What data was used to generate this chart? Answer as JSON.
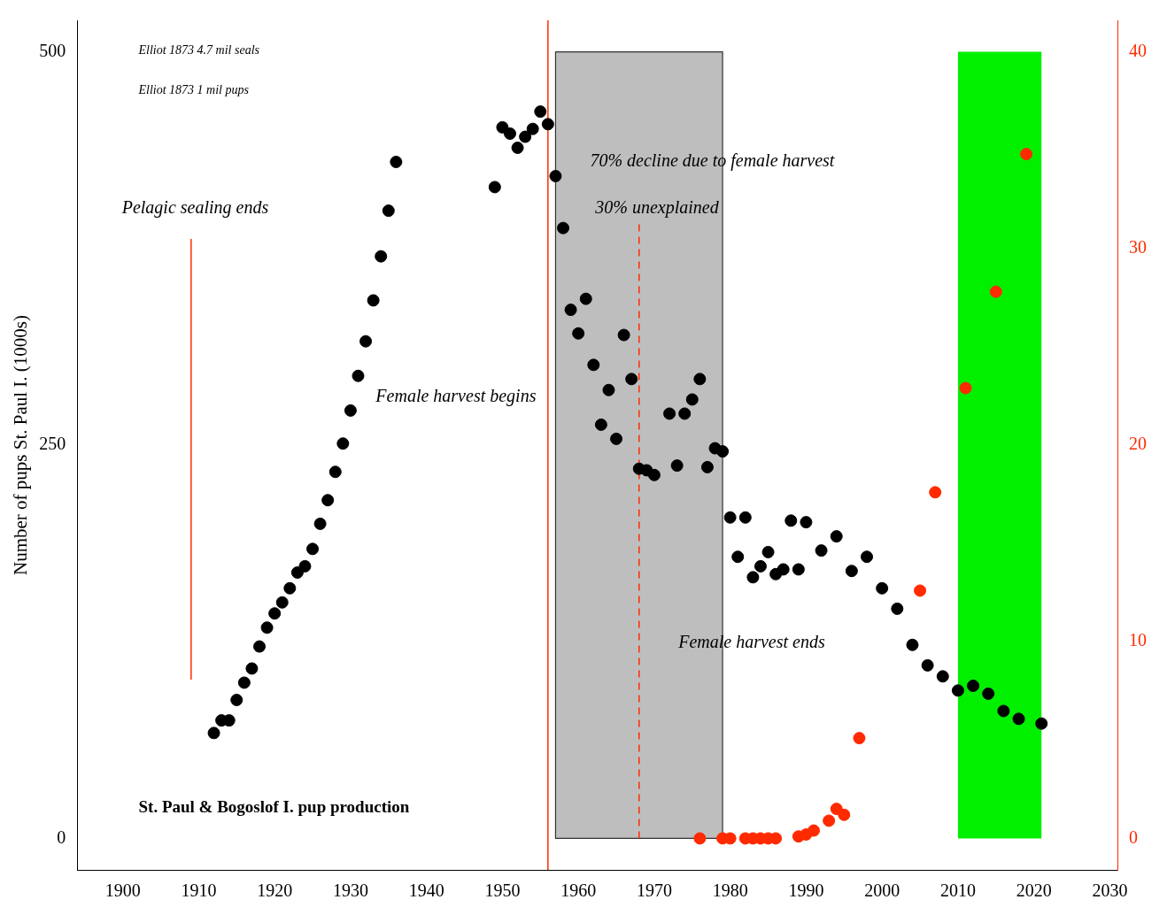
{
  "chart_data": {
    "type": "scatter",
    "ylabel": "Number of pups St. Paul I. (1000s)",
    "xlim": [
      1894,
      2031
    ],
    "xticks": [
      1900,
      1910,
      1920,
      1930,
      1940,
      1950,
      1960,
      1970,
      1980,
      1990,
      2000,
      2010,
      2020,
      2030
    ],
    "ylim": [
      -20,
      520
    ],
    "yticks": [
      0,
      250,
      500
    ],
    "y2lim": [
      -1.6,
      41.6
    ],
    "y2ticks": [
      0,
      10,
      20,
      30,
      40
    ],
    "grid": false,
    "legend": false,
    "marker": "circle",
    "series": [
      {
        "color": "#000000",
        "x": [
          1912,
          1913,
          1914,
          1915,
          1916,
          1917,
          1918,
          1919,
          1920,
          1921,
          1922,
          1923,
          1924,
          1925,
          1926,
          1927,
          1928,
          1929,
          1930,
          1931,
          1932,
          1933,
          1934,
          1935,
          1936,
          1949,
          1950,
          1951,
          1952,
          1953,
          1954,
          1955,
          1956,
          1957,
          1958,
          1959,
          1960,
          1961,
          1962,
          1963,
          1964,
          1965,
          1966,
          1967,
          1968,
          1969,
          1970,
          1972,
          1973,
          1974,
          1975,
          1976,
          1977,
          1978,
          1979,
          1980,
          1981,
          1982,
          1983,
          1984,
          1985,
          1986,
          1987,
          1988,
          1989,
          1990,
          1992,
          1994,
          1996,
          1998,
          2000,
          2002,
          2004,
          2006,
          2008,
          2010,
          2012,
          2014,
          2016,
          2018,
          2021
        ],
        "values": [
          67,
          75,
          75,
          88,
          99,
          108,
          122,
          134,
          143,
          150,
          159,
          169,
          173,
          184,
          200,
          215,
          233,
          251,
          272,
          294,
          316,
          342,
          370,
          399,
          430,
          414,
          452,
          448,
          439,
          446,
          451,
          462,
          454,
          421,
          388,
          336,
          321,
          343,
          301,
          263,
          285,
          254,
          320,
          292,
          235,
          234,
          231,
          270,
          237,
          270,
          279,
          292,
          236,
          248,
          246,
          204,
          179,
          204,
          166,
          173,
          182,
          168,
          171,
          202,
          171,
          201,
          183,
          192,
          170,
          179,
          159,
          146,
          123,
          110,
          103,
          94,
          97,
          92,
          81,
          76,
          73
        ]
      },
      {
        "type": "scatter",
        "color": "#ff2a00",
        "axis": "y2",
        "x": [
          1976,
          1979,
          1980,
          1982,
          1983,
          1984,
          1985,
          1986,
          1989,
          1990,
          1991,
          1993,
          1994,
          1995,
          1997,
          2005,
          2007,
          2011,
          2015,
          2019
        ],
        "values": [
          0,
          0,
          0,
          0,
          0,
          0,
          0,
          0,
          0.1,
          0.2,
          0.4,
          0.9,
          1.5,
          1.2,
          5.1,
          12.6,
          17.6,
          22.9,
          27.8,
          34.8
        ]
      },
      {
        "type": "line",
        "marker": "none",
        "color": "#ff2a00",
        "line_style": "solid",
        "x": [
          1909,
          1909
        ],
        "values": [
          101,
          381
        ]
      },
      {
        "type": "line",
        "marker": "none",
        "color": "#ff2a00",
        "line_style": "dashed",
        "x": [
          1968,
          1968
        ],
        "values": [
          0,
          391
        ]
      }
    ],
    "ref_lines": [
      {
        "axis": "x",
        "value": 1956,
        "color": "#ff2a00",
        "line_style": "solid"
      }
    ],
    "bands": [
      {
        "axis": "x",
        "from": 1957,
        "to": 1979,
        "color": "#bebebe"
      },
      {
        "axis": "x",
        "from": 2010,
        "to": 2021,
        "color": "#00f000"
      }
    ],
    "annotations": [
      "Elliot 1873 4.7 mil seals",
      "Elliot 1873 1 mil pups",
      "Pelagic sealing ends",
      "70% decline due to female harvest",
      "30% unexplained",
      "Female harvest begins",
      "Female harvest ends",
      "St. Paul & Bogoslof I. pup production"
    ]
  }
}
